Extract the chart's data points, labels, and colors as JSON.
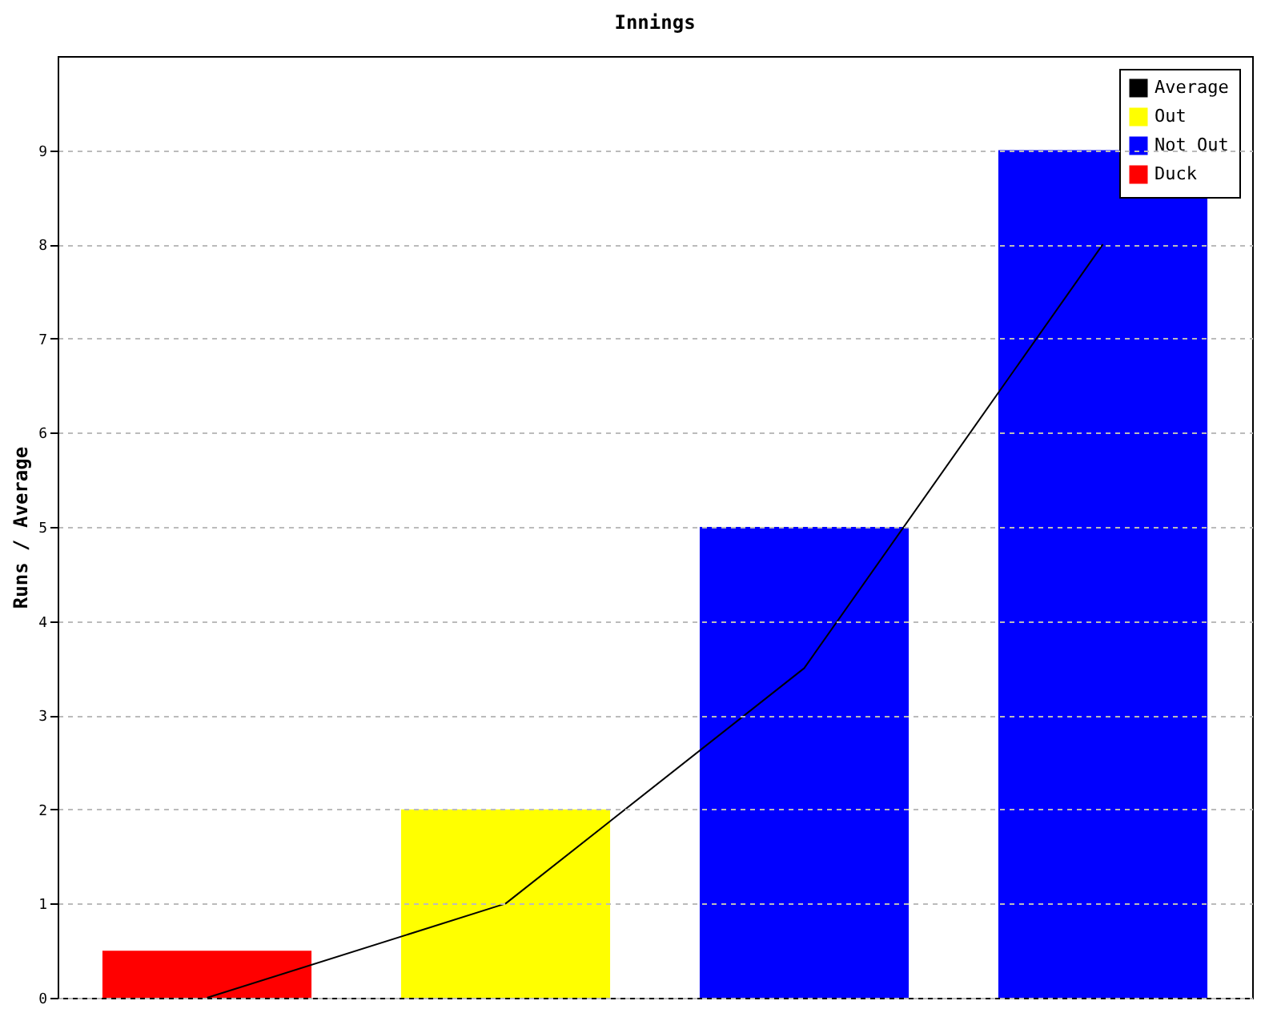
{
  "chart_data": {
    "type": "bar",
    "title": "Innings",
    "ylabel": "Runs / Average",
    "categories": [
      null,
      null,
      null,
      null
    ],
    "series": [
      {
        "name": "Average",
        "type": "line",
        "color": "#000000",
        "values": [
          0,
          1,
          3.5,
          8
        ]
      },
      {
        "name": "Out",
        "color": "#ffff00",
        "values": [
          null,
          2,
          null,
          null
        ]
      },
      {
        "name": "Not Out",
        "color": "#0000ff",
        "values": [
          null,
          null,
          5,
          9
        ]
      },
      {
        "name": "Duck",
        "color": "#ff0000",
        "values": [
          0.5,
          null,
          null,
          null
        ]
      }
    ],
    "ylim": [
      0,
      10
    ],
    "yticks": [
      0,
      1,
      2,
      3,
      4,
      5,
      6,
      7,
      8,
      9
    ],
    "grid": "y",
    "legend": "top right",
    "marker": "none",
    "line_style": "solid"
  }
}
